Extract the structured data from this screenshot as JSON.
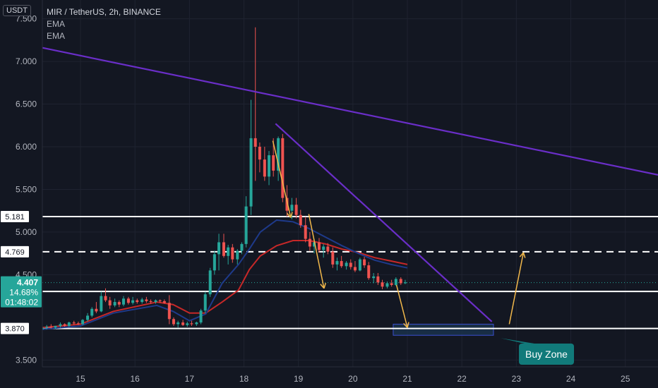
{
  "header": {
    "currency": "USDT",
    "symbol_title": "MIR / TetherUS, 2h, BINANCE",
    "indicators": [
      "EMA",
      "EMA"
    ]
  },
  "price_badge": {
    "price": "4.407",
    "change": "14.68%",
    "countdown": "01:48:02"
  },
  "colors": {
    "background": "#131722",
    "up": "#26a69a",
    "down": "#ef5350",
    "ema_fast": "#1e3a8a",
    "ema_slow": "#c62828",
    "trendline": "#6a2ec8",
    "arrow": "#f2b84b",
    "level": "#ffffff",
    "buy_zone_fill": "#1b3650",
    "callout": "#117a7a"
  },
  "annotations": {
    "buy_zone_label": "Buy Zone"
  },
  "chart_data": {
    "type": "candlestick",
    "title": "MIR / TetherUS, 2h, BINANCE",
    "y_axis_unit": "USDT",
    "ylim": [
      3.42,
      7.72
    ],
    "xlim": [
      14.3,
      25.6
    ],
    "y_ticks": [
      "7.500",
      "7.000",
      "6.500",
      "6.000",
      "5.500",
      "5.000",
      "4.500",
      "3.500"
    ],
    "y_tick_values": [
      7.5,
      7.0,
      6.5,
      6.0,
      5.5,
      5.0,
      4.5,
      3.5
    ],
    "x_ticks": [
      "15",
      "16",
      "17",
      "18",
      "19",
      "20",
      "21",
      "22",
      "23",
      "24",
      "25"
    ],
    "x_tick_values": [
      15,
      16,
      17,
      18,
      19,
      20,
      21,
      22,
      23,
      24,
      25
    ],
    "price_levels": [
      {
        "label": "5.181",
        "value": 5.181,
        "style": "solid"
      },
      {
        "label": "4.769",
        "value": 4.769,
        "style": "dashed"
      },
      {
        "label": "4.304",
        "value": 4.304,
        "style": "solid"
      },
      {
        "label": "3.870",
        "value": 3.87,
        "style": "solid"
      }
    ],
    "current_price": 4.407,
    "candles": [
      [
        14.3,
        3.86,
        3.9,
        3.84,
        3.88
      ],
      [
        14.38,
        3.88,
        3.91,
        3.86,
        3.89
      ],
      [
        14.46,
        3.89,
        3.92,
        3.87,
        3.88
      ],
      [
        14.54,
        3.88,
        3.9,
        3.86,
        3.9
      ],
      [
        14.63,
        3.9,
        3.94,
        3.88,
        3.92
      ],
      [
        14.71,
        3.92,
        3.93,
        3.89,
        3.9
      ],
      [
        14.79,
        3.9,
        3.95,
        3.89,
        3.94
      ],
      [
        14.88,
        3.94,
        3.96,
        3.91,
        3.93
      ],
      [
        14.96,
        3.93,
        3.95,
        3.91,
        3.92
      ],
      [
        15.04,
        3.92,
        3.98,
        3.91,
        3.97
      ],
      [
        15.13,
        3.97,
        4.05,
        3.95,
        4.02
      ],
      [
        15.21,
        4.02,
        4.12,
        4.0,
        4.1
      ],
      [
        15.29,
        4.1,
        4.18,
        4.05,
        4.07
      ],
      [
        15.38,
        4.07,
        4.3,
        4.06,
        4.25
      ],
      [
        15.46,
        4.25,
        4.34,
        4.18,
        4.2
      ],
      [
        15.54,
        4.2,
        4.24,
        4.1,
        4.14
      ],
      [
        15.63,
        4.14,
        4.22,
        4.12,
        4.18
      ],
      [
        15.71,
        4.18,
        4.2,
        4.12,
        4.15
      ],
      [
        15.79,
        4.15,
        4.25,
        4.13,
        4.22
      ],
      [
        15.88,
        4.22,
        4.24,
        4.15,
        4.17
      ],
      [
        15.96,
        4.17,
        4.24,
        4.15,
        4.2
      ],
      [
        16.04,
        4.2,
        4.22,
        4.16,
        4.18
      ],
      [
        16.13,
        4.18,
        4.23,
        4.16,
        4.21
      ],
      [
        16.21,
        4.21,
        4.24,
        4.17,
        4.19
      ],
      [
        16.29,
        4.19,
        4.21,
        4.16,
        4.18
      ],
      [
        16.38,
        4.18,
        4.21,
        4.16,
        4.2
      ],
      [
        16.46,
        4.2,
        4.21,
        4.17,
        4.19
      ],
      [
        16.54,
        4.19,
        4.21,
        4.16,
        4.17
      ],
      [
        16.63,
        4.17,
        4.26,
        3.92,
        3.98
      ],
      [
        16.71,
        3.98,
        4.0,
        3.9,
        3.92
      ],
      [
        16.79,
        3.92,
        3.96,
        3.88,
        3.94
      ],
      [
        16.88,
        3.94,
        3.97,
        3.9,
        3.91
      ],
      [
        16.96,
        3.91,
        3.95,
        3.89,
        3.93
      ],
      [
        17.04,
        3.93,
        3.96,
        3.9,
        3.92
      ],
      [
        17.13,
        3.92,
        3.95,
        3.9,
        3.94
      ],
      [
        17.21,
        3.94,
        4.1,
        3.92,
        4.08
      ],
      [
        17.29,
        4.08,
        4.3,
        4.05,
        4.27
      ],
      [
        17.38,
        4.27,
        4.58,
        4.24,
        4.55
      ],
      [
        17.46,
        4.55,
        4.78,
        4.5,
        4.74
      ],
      [
        17.54,
        4.74,
        4.98,
        4.55,
        4.88
      ],
      [
        17.63,
        4.88,
        4.98,
        4.7,
        4.72
      ],
      [
        17.71,
        4.72,
        4.85,
        4.62,
        4.82
      ],
      [
        17.79,
        4.82,
        4.86,
        4.64,
        4.68
      ],
      [
        17.88,
        4.68,
        4.8,
        4.62,
        4.78
      ],
      [
        17.96,
        4.78,
        4.88,
        4.74,
        4.86
      ],
      [
        18.04,
        4.86,
        5.42,
        4.82,
        5.3
      ],
      [
        18.13,
        5.3,
        6.55,
        5.2,
        6.1
      ],
      [
        18.21,
        6.1,
        7.4,
        5.6,
        6.0
      ],
      [
        18.29,
        6.0,
        6.05,
        5.7,
        5.85
      ],
      [
        18.38,
        5.85,
        6.0,
        5.6,
        5.65
      ],
      [
        18.46,
        5.65,
        5.95,
        5.55,
        5.9
      ],
      [
        18.54,
        5.9,
        6.1,
        5.65,
        5.72
      ],
      [
        18.63,
        5.72,
        6.12,
        5.6,
        6.1
      ],
      [
        18.71,
        6.1,
        6.15,
        5.35,
        5.4
      ],
      [
        18.79,
        5.4,
        5.55,
        5.18,
        5.25
      ],
      [
        18.88,
        5.25,
        5.4,
        5.15,
        5.32
      ],
      [
        18.96,
        5.32,
        5.4,
        5.16,
        5.2
      ],
      [
        19.04,
        5.2,
        5.26,
        5.05,
        5.08
      ],
      [
        19.13,
        5.08,
        5.18,
        4.88,
        4.92
      ],
      [
        19.21,
        4.92,
        5.0,
        4.78,
        4.83
      ],
      [
        19.29,
        4.83,
        4.92,
        4.75,
        4.88
      ],
      [
        19.38,
        4.88,
        4.93,
        4.76,
        4.79
      ],
      [
        19.46,
        4.79,
        4.86,
        4.7,
        4.83
      ],
      [
        19.54,
        4.83,
        4.87,
        4.74,
        4.77
      ],
      [
        19.63,
        4.77,
        4.82,
        4.58,
        4.62
      ],
      [
        19.71,
        4.62,
        4.7,
        4.55,
        4.66
      ],
      [
        19.79,
        4.66,
        4.72,
        4.58,
        4.6
      ],
      [
        19.88,
        4.6,
        4.66,
        4.56,
        4.64
      ],
      [
        19.96,
        4.64,
        4.68,
        4.56,
        4.59
      ],
      [
        20.04,
        4.59,
        4.66,
        4.53,
        4.55
      ],
      [
        20.13,
        4.55,
        4.7,
        4.54,
        4.68
      ],
      [
        20.21,
        4.68,
        4.71,
        4.58,
        4.61
      ],
      [
        20.29,
        4.61,
        4.65,
        4.44,
        4.46
      ],
      [
        20.38,
        4.46,
        4.52,
        4.4,
        4.48
      ],
      [
        20.46,
        4.48,
        4.52,
        4.38,
        4.41
      ],
      [
        20.54,
        4.41,
        4.44,
        4.33,
        4.36
      ],
      [
        20.63,
        4.36,
        4.42,
        4.34,
        4.4
      ],
      [
        20.71,
        4.4,
        4.44,
        4.36,
        4.38
      ],
      [
        20.79,
        4.38,
        4.47,
        4.37,
        4.45
      ],
      [
        20.88,
        4.45,
        4.47,
        4.38,
        4.4
      ],
      [
        20.96,
        4.4,
        4.44,
        4.39,
        4.41
      ]
    ],
    "ema_series": [
      {
        "color": "#c62828",
        "points": [
          [
            14.3,
            3.88
          ],
          [
            15.0,
            3.92
          ],
          [
            15.6,
            4.07
          ],
          [
            16.4,
            4.18
          ],
          [
            16.7,
            4.15
          ],
          [
            17.0,
            4.05
          ],
          [
            17.3,
            4.05
          ],
          [
            17.6,
            4.18
          ],
          [
            17.9,
            4.32
          ],
          [
            18.1,
            4.56
          ],
          [
            18.3,
            4.72
          ],
          [
            18.6,
            4.84
          ],
          [
            18.9,
            4.9
          ],
          [
            19.2,
            4.9
          ],
          [
            19.5,
            4.86
          ],
          [
            19.8,
            4.8
          ],
          [
            20.1,
            4.76
          ],
          [
            20.4,
            4.7
          ],
          [
            20.7,
            4.66
          ],
          [
            21.0,
            4.62
          ]
        ]
      },
      {
        "color": "#1e3a8a",
        "points": [
          [
            14.3,
            3.86
          ],
          [
            15.0,
            3.9
          ],
          [
            15.6,
            4.05
          ],
          [
            16.4,
            4.14
          ],
          [
            16.7,
            4.07
          ],
          [
            17.0,
            3.96
          ],
          [
            17.3,
            4.04
          ],
          [
            17.6,
            4.4
          ],
          [
            17.9,
            4.62
          ],
          [
            18.1,
            4.8
          ],
          [
            18.3,
            5.0
          ],
          [
            18.6,
            5.14
          ],
          [
            18.9,
            5.12
          ],
          [
            19.2,
            5.04
          ],
          [
            19.5,
            4.94
          ],
          [
            19.8,
            4.84
          ],
          [
            20.1,
            4.75
          ],
          [
            20.4,
            4.67
          ],
          [
            20.7,
            4.62
          ],
          [
            21.0,
            4.58
          ]
        ]
      }
    ],
    "trendlines": [
      {
        "points": [
          [
            14.3,
            7.16
          ],
          [
            25.6,
            5.67
          ]
        ]
      },
      {
        "points": [
          [
            18.58,
            6.27
          ],
          [
            22.55,
            3.95
          ]
        ]
      }
    ],
    "arrows": [
      {
        "from": [
          18.53,
          6.07
        ],
        "to": [
          18.86,
          5.17
        ]
      },
      {
        "from": [
          19.19,
          5.21
        ],
        "to": [
          19.47,
          4.34
        ]
      },
      {
        "from": [
          20.8,
          4.38
        ],
        "to": [
          21.0,
          3.88
        ]
      },
      {
        "from": [
          22.87,
          3.92
        ],
        "to": [
          23.13,
          4.76
        ]
      }
    ],
    "buy_zone": {
      "x": [
        20.74,
        22.58
      ],
      "y": [
        3.79,
        3.92
      ]
    }
  }
}
